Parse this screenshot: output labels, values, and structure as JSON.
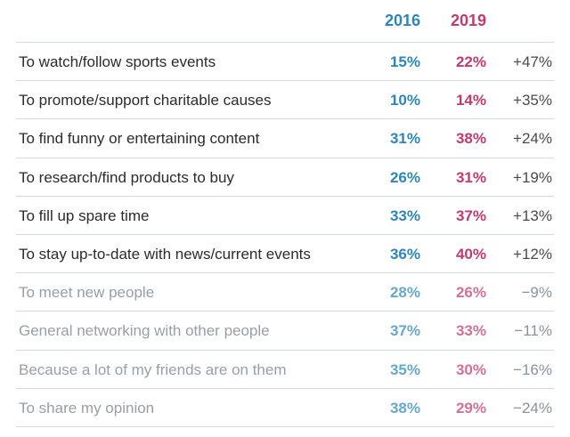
{
  "chart_data": {
    "type": "table",
    "columns": [
      "",
      "2016",
      "2019",
      ""
    ],
    "rows": [
      {
        "label": "To watch/follow sports events",
        "v2016": "15%",
        "v2019": "22%",
        "change": "+47%",
        "emphasis": true
      },
      {
        "label": "To promote/support charitable causes",
        "v2016": "10%",
        "v2019": "14%",
        "change": "+35%",
        "emphasis": true
      },
      {
        "label": "To find funny or entertaining content",
        "v2016": "31%",
        "v2019": "38%",
        "change": "+24%",
        "emphasis": true
      },
      {
        "label": "To research/find products to buy",
        "v2016": "26%",
        "v2019": "31%",
        "change": "+19%",
        "emphasis": true
      },
      {
        "label": "To fill up spare time",
        "v2016": "33%",
        "v2019": "37%",
        "change": "+13%",
        "emphasis": true
      },
      {
        "label": "To stay up-to-date with news/current events",
        "v2016": "36%",
        "v2019": "40%",
        "change": "+12%",
        "emphasis": true
      },
      {
        "label": "To meet new people",
        "v2016": "28%",
        "v2019": "26%",
        "change": "−9%",
        "emphasis": false
      },
      {
        "label": "General networking with other people",
        "v2016": "37%",
        "v2019": "33%",
        "change": "−11%",
        "emphasis": false
      },
      {
        "label": "Because a lot of my friends are on them",
        "v2016": "35%",
        "v2019": "30%",
        "change": "−16%",
        "emphasis": false
      },
      {
        "label": "To share my opinion",
        "v2016": "38%",
        "v2019": "29%",
        "change": "−24%",
        "emphasis": false
      }
    ]
  },
  "colors": {
    "col_2016": "#2e86b8",
    "col_2019": "#c23b6e",
    "label_strong": "#2b2b2b",
    "label_faded": "#6f7b82",
    "change_strong": "#4a4a4a",
    "change_faded": "#8a9398"
  }
}
